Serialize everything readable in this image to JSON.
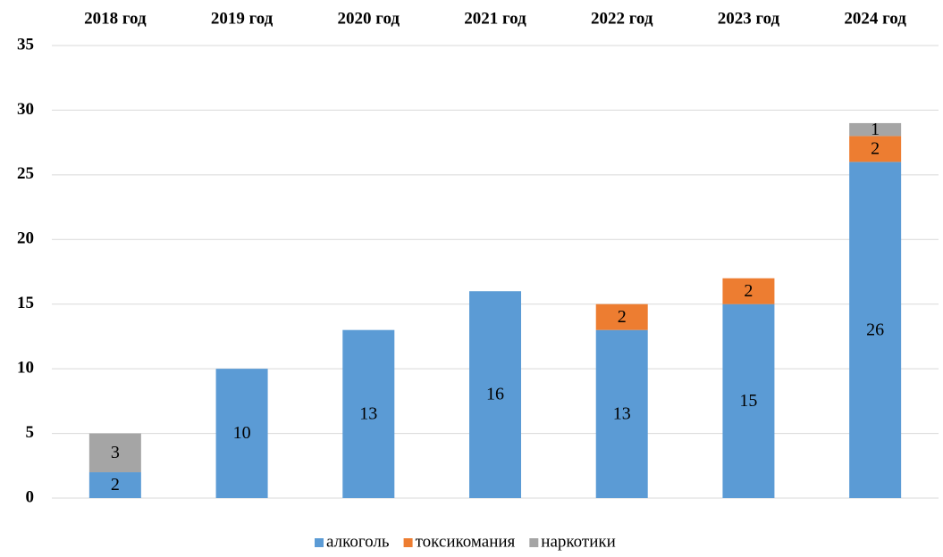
{
  "chart_data": {
    "type": "stacked_bar",
    "categories": [
      "2018 год",
      "2019 год",
      "2020 год",
      "2021 год",
      "2022 год",
      "2023 год",
      "2024 год"
    ],
    "series": [
      {
        "name": "алкоголь",
        "color": "#5b9bd5",
        "values": [
          2,
          10,
          13,
          16,
          13,
          15,
          26
        ]
      },
      {
        "name": "токсикомания",
        "color": "#ed7d31",
        "values": [
          null,
          null,
          null,
          null,
          2,
          2,
          2
        ]
      },
      {
        "name": "наркотики",
        "color": "#a5a5a5",
        "values": [
          3,
          null,
          null,
          null,
          null,
          null,
          1
        ]
      }
    ],
    "ylim": [
      0,
      35
    ],
    "yticks": [
      0,
      5,
      10,
      15,
      20,
      25,
      30,
      35
    ],
    "grid": true,
    "legend": "bottom"
  }
}
